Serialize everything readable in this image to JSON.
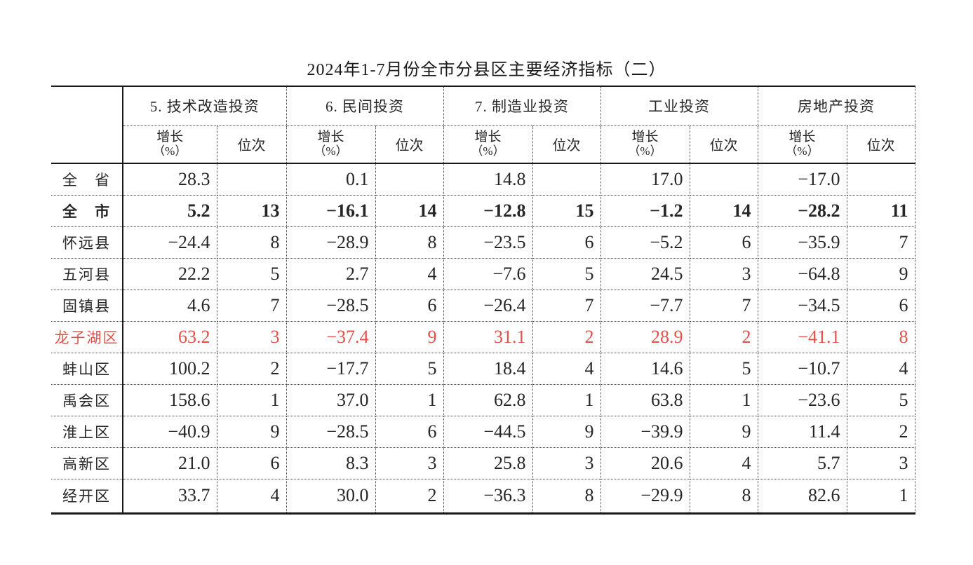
{
  "title": "2024年1-7月份全市分县区主要经济指标（二）",
  "table": {
    "groups": [
      {
        "label": "5. 技术改造投资"
      },
      {
        "label": "6. 民间投资"
      },
      {
        "label": "7. 制造业投资"
      },
      {
        "label": "工业投资"
      },
      {
        "label": "房地产投资"
      }
    ],
    "subheaders": {
      "growth_line1": "增长",
      "growth_line2": "（%）",
      "rank": "位次"
    },
    "rows": [
      {
        "name": "全　省",
        "style": "normal",
        "values": [
          "28.3",
          "",
          "0.1",
          "",
          "14.8",
          "",
          "17.0",
          "",
          "-17.0",
          ""
        ]
      },
      {
        "name": "全　市",
        "style": "bold",
        "values": [
          "5.2",
          "13",
          "-16.1",
          "14",
          "-12.8",
          "15",
          "-1.2",
          "14",
          "-28.2",
          "11"
        ]
      },
      {
        "name": "怀远县",
        "style": "normal",
        "values": [
          "-24.4",
          "8",
          "-28.9",
          "8",
          "-23.5",
          "6",
          "-5.2",
          "6",
          "-35.9",
          "7"
        ]
      },
      {
        "name": "五河县",
        "style": "normal",
        "values": [
          "22.2",
          "5",
          "2.7",
          "4",
          "-7.6",
          "5",
          "24.5",
          "3",
          "-64.8",
          "9"
        ]
      },
      {
        "name": "固镇县",
        "style": "normal",
        "values": [
          "4.6",
          "7",
          "-28.5",
          "6",
          "-26.4",
          "7",
          "-7.7",
          "7",
          "-34.5",
          "6"
        ]
      },
      {
        "name": "龙子湖区",
        "style": "red",
        "values": [
          "63.2",
          "3",
          "-37.4",
          "9",
          "31.1",
          "2",
          "28.9",
          "2",
          "-41.1",
          "8"
        ]
      },
      {
        "name": "蚌山区",
        "style": "normal",
        "values": [
          "100.2",
          "2",
          "-17.7",
          "5",
          "18.4",
          "4",
          "14.6",
          "5",
          "-10.7",
          "4"
        ]
      },
      {
        "name": "禹会区",
        "style": "normal",
        "values": [
          "158.6",
          "1",
          "37.0",
          "1",
          "62.8",
          "1",
          "63.8",
          "1",
          "-23.6",
          "5"
        ]
      },
      {
        "name": "淮上区",
        "style": "normal",
        "values": [
          "-40.9",
          "9",
          "-28.5",
          "6",
          "-44.5",
          "9",
          "-39.9",
          "9",
          "11.4",
          "2"
        ]
      },
      {
        "name": "高新区",
        "style": "normal",
        "values": [
          "21.0",
          "6",
          "8.3",
          "3",
          "25.8",
          "3",
          "20.6",
          "4",
          "5.7",
          "3"
        ]
      },
      {
        "name": "经开区",
        "style": "normal",
        "values": [
          "33.7",
          "4",
          "30.0",
          "2",
          "-36.3",
          "8",
          "-29.9",
          "8",
          "82.6",
          "1"
        ]
      }
    ]
  },
  "colors": {
    "highlight_red": "#e25048",
    "text": "#262626",
    "line_solid": "#1a1a1a",
    "line_dotted": "#4a4a4a"
  }
}
